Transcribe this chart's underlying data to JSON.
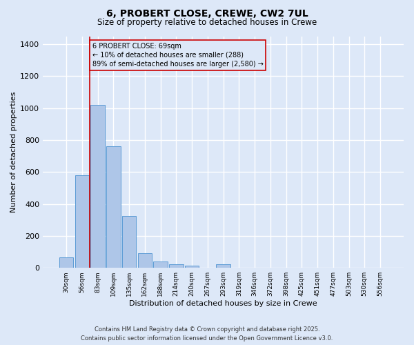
{
  "title_line1": "6, PROBERT CLOSE, CREWE, CW2 7UL",
  "title_line2": "Size of property relative to detached houses in Crewe",
  "xlabel": "Distribution of detached houses by size in Crewe",
  "ylabel": "Number of detached properties",
  "footer_line1": "Contains HM Land Registry data © Crown copyright and database right 2025.",
  "footer_line2": "Contains public sector information licensed under the Open Government Licence v3.0.",
  "categories": [
    "30sqm",
    "56sqm",
    "83sqm",
    "109sqm",
    "135sqm",
    "162sqm",
    "188sqm",
    "214sqm",
    "240sqm",
    "267sqm",
    "293sqm",
    "319sqm",
    "346sqm",
    "372sqm",
    "398sqm",
    "425sqm",
    "451sqm",
    "477sqm",
    "503sqm",
    "530sqm",
    "556sqm"
  ],
  "values": [
    65,
    580,
    1020,
    760,
    325,
    90,
    38,
    23,
    15,
    0,
    22,
    0,
    0,
    0,
    0,
    0,
    0,
    0,
    0,
    0,
    0
  ],
  "bar_color": "#aec6e8",
  "bar_edge_color": "#5b9bd5",
  "background_color": "#dde8f8",
  "grid_color": "#ffffff",
  "vline_color": "#cc0000",
  "annotation_text": "6 PROBERT CLOSE: 69sqm\n← 10% of detached houses are smaller (288)\n89% of semi-detached houses are larger (2,580) →",
  "annotation_box_color": "#cc0000",
  "ylim": [
    0,
    1450
  ],
  "yticks": [
    0,
    200,
    400,
    600,
    800,
    1000,
    1200,
    1400
  ]
}
